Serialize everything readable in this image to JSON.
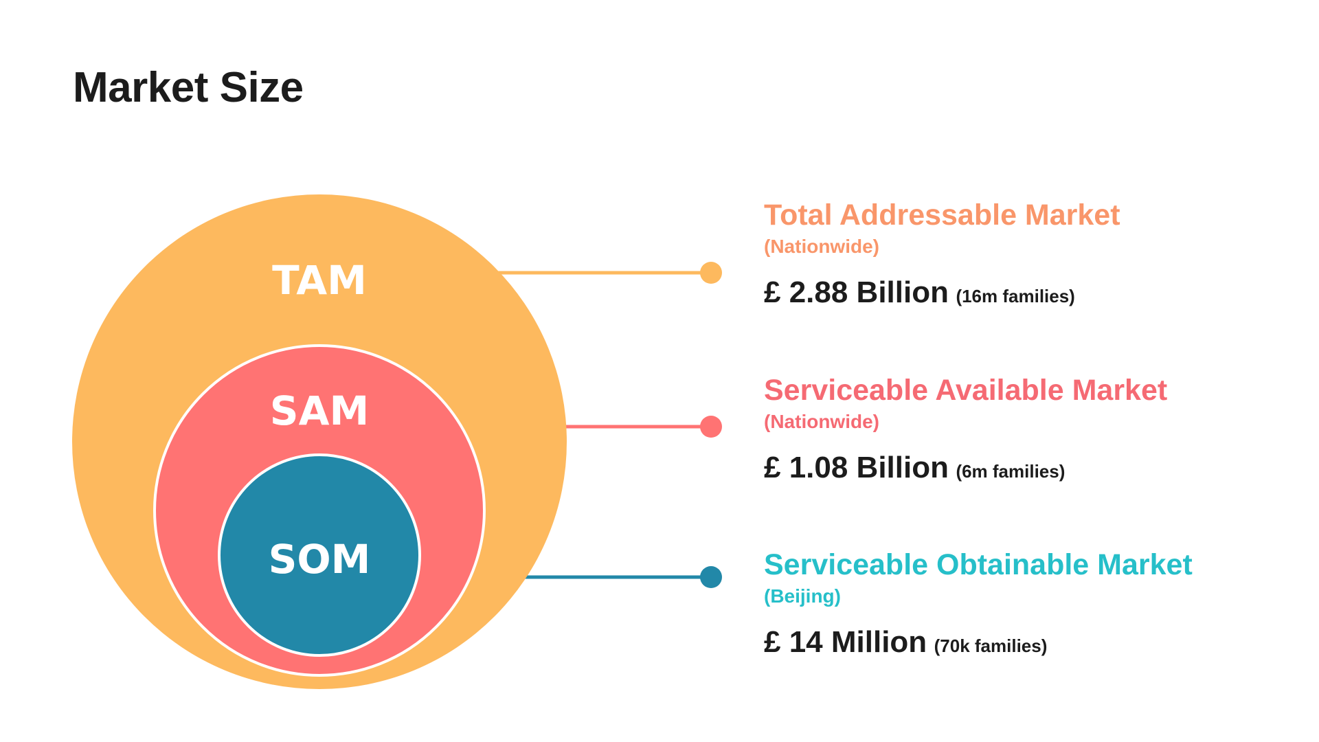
{
  "page": {
    "title": "Market Size"
  },
  "colors": {
    "tam": "#FDB95E",
    "sam": "#FF7373",
    "som": "#2288A8",
    "tam_text": "#F9966A",
    "sam_text": "#F56A73",
    "som_text": "#26BFC9",
    "title_text": "#1C1C1C"
  },
  "circles": {
    "tam": {
      "label": "TAM"
    },
    "sam": {
      "label": "SAM"
    },
    "som": {
      "label": "SOM"
    }
  },
  "markets": {
    "tam": {
      "title": "Total Addressable Market",
      "scope": "(Nationwide)",
      "value": "£ 2.88 Billion",
      "families": "(16m families)"
    },
    "sam": {
      "title": "Serviceable Available Market",
      "scope": "(Nationwide)",
      "value": "£ 1.08 Billion",
      "families": "(6m families)"
    },
    "som": {
      "title": "Serviceable Obtainable Market",
      "scope": "(Beijing)",
      "value": "£ 14 Million",
      "families": "(70k  families)"
    }
  }
}
